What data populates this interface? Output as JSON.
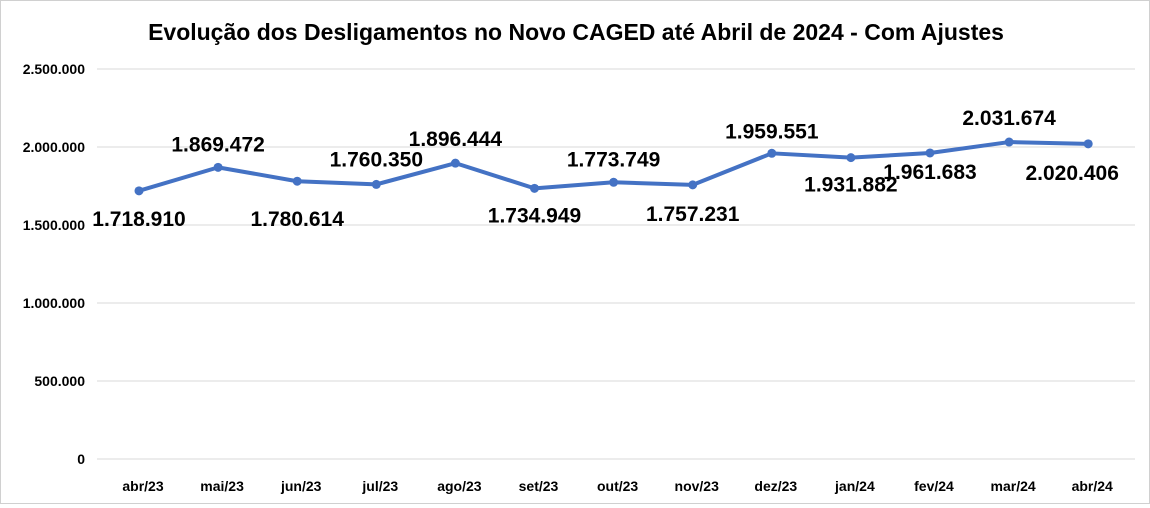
{
  "chart_data": {
    "type": "line",
    "title": "Evolução dos Desligamentos no Novo CAGED até Abril de 2024 - Com Ajustes",
    "xlabel": "",
    "ylabel": "",
    "ylim": [
      0,
      2500000
    ],
    "yticks": [
      "0",
      "500.000",
      "1.000.000",
      "1.500.000",
      "2.000.000",
      "2.500.000"
    ],
    "ytick_values": [
      0,
      500000,
      1000000,
      1500000,
      2000000,
      2500000
    ],
    "grid": true,
    "legend": "none",
    "categories": [
      "abr/23",
      "mai/23",
      "jun/23",
      "jul/23",
      "ago/23",
      "set/23",
      "out/23",
      "nov/23",
      "dez/23",
      "jan/24",
      "fev/24",
      "mar/24",
      "abr/24"
    ],
    "series": [
      {
        "values": [
          1718910,
          1869472,
          1780614,
          1760350,
          1896444,
          1734949,
          1773749,
          1757231,
          1959551,
          1931882,
          1961683,
          2031674,
          2020406
        ],
        "data_labels": [
          "1.718.910",
          "1.869.472",
          "1.780.614",
          "1.760.350",
          "1.896.444",
          "1.734.949",
          "1.773.749",
          "1.757.231",
          "1.959.551",
          "1.931.882",
          "1.961.683",
          "2.031.674",
          "2.020.406"
        ],
        "color": "#4472c4"
      }
    ],
    "colors": {
      "line": "#4472c4",
      "grid": "#d9d9d9",
      "text": "#000000"
    }
  }
}
